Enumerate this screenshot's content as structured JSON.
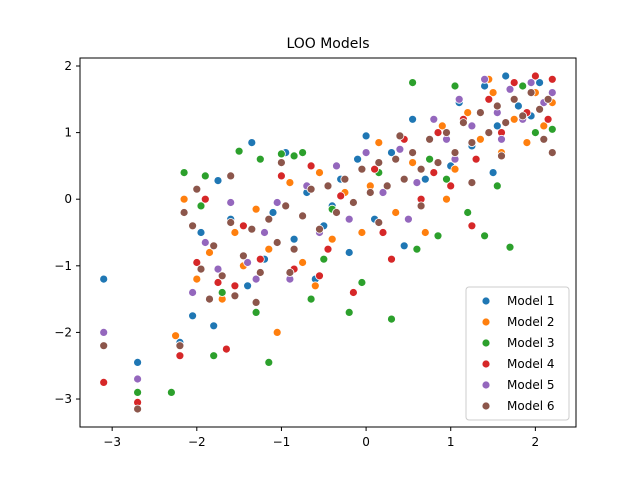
{
  "chart_data": {
    "type": "scatter",
    "title": "LOO Models",
    "xlabel": "",
    "ylabel": "",
    "xlim": [
      -3.38,
      2.48
    ],
    "ylim": [
      -3.42,
      2.12
    ],
    "xticks": [
      -3,
      -2,
      -1,
      0,
      1,
      2
    ],
    "yticks": [
      -3,
      -2,
      -1,
      0,
      1,
      2
    ],
    "grid": false,
    "legend_position": "lower-right",
    "series": [
      {
        "name": "Model 1",
        "color": "#1f77b4",
        "points": [
          [
            -3.1,
            -1.2
          ],
          [
            -2.7,
            -2.45
          ],
          [
            -2.2,
            -2.15
          ],
          [
            -2.05,
            -1.75
          ],
          [
            -1.95,
            -0.5
          ],
          [
            -1.8,
            -1.9
          ],
          [
            -1.75,
            0.28
          ],
          [
            -1.6,
            -0.3
          ],
          [
            -1.4,
            -1.3
          ],
          [
            -1.35,
            0.85
          ],
          [
            -1.2,
            -0.9
          ],
          [
            -1.1,
            -0.2
          ],
          [
            -0.95,
            0.7
          ],
          [
            -0.85,
            -0.6
          ],
          [
            -0.7,
            0.1
          ],
          [
            -0.6,
            -1.2
          ],
          [
            -0.5,
            -0.4
          ],
          [
            -0.3,
            0.3
          ],
          [
            -0.2,
            -0.8
          ],
          [
            -0.1,
            0.6
          ],
          [
            0.0,
            0.95
          ],
          [
            0.1,
            -0.3
          ],
          [
            0.3,
            0.7
          ],
          [
            0.45,
            -0.7
          ],
          [
            0.55,
            1.2
          ],
          [
            0.7,
            0.3
          ],
          [
            0.85,
            1.0
          ],
          [
            1.0,
            0.5
          ],
          [
            1.1,
            1.45
          ],
          [
            1.25,
            0.8
          ],
          [
            1.4,
            1.7
          ],
          [
            1.55,
            1.1
          ],
          [
            1.65,
            1.85
          ],
          [
            1.8,
            1.4
          ],
          [
            1.95,
            1.25
          ],
          [
            2.05,
            1.75
          ],
          [
            2.15,
            1.5
          ],
          [
            0.25,
            0.2
          ],
          [
            -0.4,
            -0.1
          ],
          [
            1.5,
            0.4
          ]
        ]
      },
      {
        "name": "Model 2",
        "color": "#ff7f0e",
        "points": [
          [
            -2.25,
            -2.05
          ],
          [
            -2.15,
            0.0
          ],
          [
            -2.0,
            -1.2
          ],
          [
            -1.85,
            -0.8
          ],
          [
            -1.7,
            -1.5
          ],
          [
            -1.55,
            -0.5
          ],
          [
            -1.3,
            -0.15
          ],
          [
            -1.15,
            -0.75
          ],
          [
            -1.05,
            -2.0
          ],
          [
            -0.9,
            0.25
          ],
          [
            -0.75,
            -0.95
          ],
          [
            -0.55,
            0.4
          ],
          [
            -0.4,
            -0.6
          ],
          [
            -0.25,
            0.1
          ],
          [
            -0.05,
            -0.5
          ],
          [
            0.15,
            0.85
          ],
          [
            0.35,
            -0.2
          ],
          [
            0.55,
            0.55
          ],
          [
            0.7,
            -0.5
          ],
          [
            0.9,
            1.1
          ],
          [
            1.05,
            0.45
          ],
          [
            1.2,
            1.3
          ],
          [
            1.35,
            0.9
          ],
          [
            1.5,
            1.6
          ],
          [
            1.6,
            0.7
          ],
          [
            1.75,
            1.2
          ],
          [
            1.9,
            0.85
          ],
          [
            2.0,
            1.6
          ],
          [
            2.1,
            1.1
          ],
          [
            2.2,
            1.45
          ],
          [
            -0.6,
            -1.3
          ],
          [
            0.05,
            0.2
          ],
          [
            0.95,
            0.0
          ],
          [
            1.45,
            1.8
          ],
          [
            -1.45,
            -1.0
          ]
        ]
      },
      {
        "name": "Model 3",
        "color": "#2ca02c",
        "points": [
          [
            -3.1,
            -2.2
          ],
          [
            -2.7,
            -2.9
          ],
          [
            -2.3,
            -2.9
          ],
          [
            -2.15,
            0.4
          ],
          [
            -1.95,
            -0.1
          ],
          [
            -1.9,
            0.35
          ],
          [
            -1.8,
            -2.35
          ],
          [
            -1.5,
            0.72
          ],
          [
            -1.25,
            0.6
          ],
          [
            -1.15,
            -2.45
          ],
          [
            -1.0,
            0.68
          ],
          [
            -0.85,
            0.65
          ],
          [
            -0.75,
            0.7
          ],
          [
            -0.65,
            -1.5
          ],
          [
            -0.4,
            -0.15
          ],
          [
            -0.2,
            -1.7
          ],
          [
            -0.05,
            -1.25
          ],
          [
            0.3,
            -1.8
          ],
          [
            0.55,
            1.75
          ],
          [
            0.85,
            -0.55
          ],
          [
            1.05,
            1.7
          ],
          [
            1.2,
            -0.2
          ],
          [
            1.4,
            -0.55
          ],
          [
            1.7,
            -0.72
          ],
          [
            2.0,
            1.0
          ],
          [
            2.2,
            1.05
          ],
          [
            0.6,
            -0.75
          ],
          [
            0.95,
            0.3
          ],
          [
            1.55,
            0.2
          ],
          [
            -0.5,
            -0.9
          ],
          [
            -1.7,
            -1.4
          ],
          [
            0.15,
            0.4
          ],
          [
            1.85,
            1.7
          ],
          [
            -1.3,
            -1.7
          ],
          [
            0.75,
            0.6
          ]
        ]
      },
      {
        "name": "Model 4",
        "color": "#d62728",
        "points": [
          [
            -3.1,
            -2.75
          ],
          [
            -2.7,
            -3.05
          ],
          [
            -2.2,
            -2.35
          ],
          [
            -2.0,
            -0.95
          ],
          [
            -1.9,
            0.0
          ],
          [
            -1.75,
            -1.25
          ],
          [
            -1.65,
            -2.25
          ],
          [
            -1.45,
            -0.4
          ],
          [
            -1.25,
            -0.9
          ],
          [
            -1.0,
            0.35
          ],
          [
            -0.85,
            -1.05
          ],
          [
            -0.65,
            0.5
          ],
          [
            -0.45,
            -0.75
          ],
          [
            -0.3,
            0.05
          ],
          [
            -0.15,
            -1.4
          ],
          [
            0.1,
            0.45
          ],
          [
            0.3,
            -0.9
          ],
          [
            0.45,
            0.9
          ],
          [
            0.65,
            0.0
          ],
          [
            0.85,
            1.0
          ],
          [
            1.0,
            0.2
          ],
          [
            1.15,
            1.2
          ],
          [
            1.3,
            0.6
          ],
          [
            1.45,
            1.5
          ],
          [
            1.6,
            1.0
          ],
          [
            1.75,
            1.75
          ],
          [
            1.9,
            1.3
          ],
          [
            2.0,
            1.85
          ],
          [
            2.15,
            1.2
          ],
          [
            2.2,
            1.8
          ],
          [
            -0.55,
            -1.15
          ],
          [
            0.2,
            -0.5
          ],
          [
            0.8,
            0.4
          ],
          [
            1.25,
            -0.4
          ],
          [
            -1.55,
            -1.3
          ]
        ]
      },
      {
        "name": "Model 5",
        "color": "#9467bd",
        "points": [
          [
            -3.1,
            -2.0
          ],
          [
            -2.7,
            -2.7
          ],
          [
            -2.2,
            -2.2
          ],
          [
            -2.05,
            -1.4
          ],
          [
            -1.9,
            -0.65
          ],
          [
            -1.75,
            -1.05
          ],
          [
            -1.6,
            -0.05
          ],
          [
            -1.4,
            -0.95
          ],
          [
            -1.2,
            -0.5
          ],
          [
            -1.05,
            -0.05
          ],
          [
            -0.9,
            -1.2
          ],
          [
            -0.7,
            0.2
          ],
          [
            -0.55,
            -0.5
          ],
          [
            -0.35,
            0.5
          ],
          [
            -0.2,
            -0.3
          ],
          [
            0.0,
            0.7
          ],
          [
            0.2,
            0.1
          ],
          [
            0.4,
            0.75
          ],
          [
            0.6,
            0.25
          ],
          [
            0.8,
            1.2
          ],
          [
            0.95,
            0.9
          ],
          [
            1.1,
            1.5
          ],
          [
            1.25,
            1.1
          ],
          [
            1.4,
            1.8
          ],
          [
            1.55,
            1.3
          ],
          [
            1.7,
            1.65
          ],
          [
            1.85,
            1.2
          ],
          [
            1.95,
            1.75
          ],
          [
            2.1,
            1.45
          ],
          [
            2.2,
            1.6
          ],
          [
            -1.3,
            -1.2
          ],
          [
            0.5,
            -0.3
          ],
          [
            1.05,
            0.6
          ],
          [
            1.6,
            0.9
          ],
          [
            -0.25,
            0.3
          ]
        ]
      },
      {
        "name": "Model 6",
        "color": "#8c564b",
        "points": [
          [
            -3.1,
            -2.2
          ],
          [
            -2.7,
            -3.15
          ],
          [
            -2.2,
            -2.2
          ],
          [
            -2.15,
            -0.2
          ],
          [
            -2.05,
            -0.4
          ],
          [
            -1.95,
            -1.05
          ],
          [
            -1.85,
            -1.5
          ],
          [
            -1.8,
            -0.7
          ],
          [
            -1.7,
            -1.15
          ],
          [
            -1.6,
            -0.35
          ],
          [
            -1.55,
            -1.45
          ],
          [
            -1.45,
            -0.85
          ],
          [
            -1.35,
            -0.45
          ],
          [
            -1.25,
            -1.1
          ],
          [
            -1.15,
            -0.3
          ],
          [
            -1.05,
            -0.65
          ],
          [
            -0.95,
            -0.1
          ],
          [
            -0.85,
            -0.75
          ],
          [
            -0.75,
            -0.25
          ],
          [
            -0.65,
            0.15
          ],
          [
            -0.55,
            -0.45
          ],
          [
            -0.45,
            0.2
          ],
          [
            -0.35,
            -0.2
          ],
          [
            -0.25,
            0.3
          ],
          [
            -0.15,
            -0.05
          ],
          [
            -0.05,
            0.45
          ],
          [
            0.05,
            0.1
          ],
          [
            0.15,
            0.55
          ],
          [
            0.25,
            0.2
          ],
          [
            0.35,
            0.6
          ],
          [
            0.45,
            0.3
          ],
          [
            0.55,
            0.7
          ],
          [
            0.65,
            0.45
          ],
          [
            0.75,
            0.9
          ],
          [
            0.85,
            0.55
          ],
          [
            0.95,
            1.0
          ],
          [
            1.05,
            0.7
          ],
          [
            1.15,
            1.15
          ],
          [
            1.25,
            0.85
          ],
          [
            1.35,
            1.3
          ],
          [
            1.45,
            1.0
          ],
          [
            1.55,
            1.4
          ],
          [
            1.65,
            1.15
          ],
          [
            1.75,
            1.5
          ],
          [
            1.85,
            1.25
          ],
          [
            1.95,
            1.6
          ],
          [
            2.05,
            1.35
          ],
          [
            2.15,
            1.5
          ],
          [
            2.2,
            0.7
          ],
          [
            2.1,
            0.9
          ],
          [
            -1.6,
            0.35
          ],
          [
            -1.3,
            -1.55
          ],
          [
            -0.9,
            -1.1
          ],
          [
            0.15,
            -0.35
          ],
          [
            0.65,
            -0.1
          ],
          [
            1.25,
            0.25
          ],
          [
            1.6,
            0.65
          ],
          [
            -2.0,
            0.15
          ],
          [
            -1.0,
            0.55
          ],
          [
            0.4,
            0.95
          ]
        ]
      }
    ]
  }
}
